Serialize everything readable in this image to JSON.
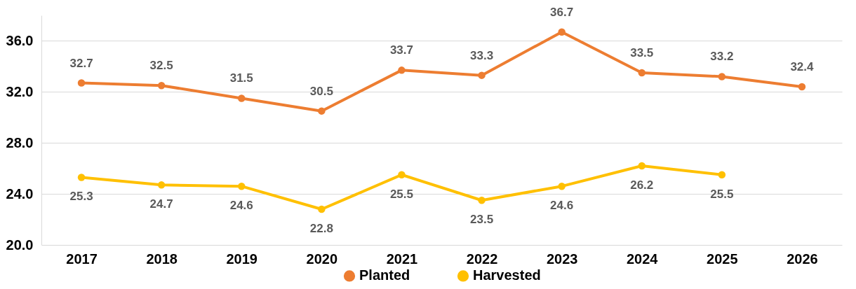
{
  "chart_data": {
    "type": "line",
    "categories": [
      "2017",
      "2018",
      "2019",
      "2020",
      "2021",
      "2022",
      "2023",
      "2024",
      "2025",
      "2026"
    ],
    "series": [
      {
        "name": "Planted",
        "color": "#ed7d31",
        "values": [
          32.7,
          32.5,
          31.5,
          30.5,
          33.7,
          33.3,
          36.7,
          33.5,
          33.2,
          32.4
        ]
      },
      {
        "name": "Harvested",
        "color": "#ffc000",
        "values": [
          25.3,
          24.7,
          24.6,
          22.8,
          25.5,
          23.5,
          24.6,
          26.2,
          25.5,
          null
        ]
      }
    ],
    "ylim": [
      20,
      38
    ],
    "yticks": [
      {
        "value": 20,
        "label": "20.0"
      },
      {
        "value": 24,
        "label": "24.0"
      },
      {
        "value": 28,
        "label": "28.0"
      },
      {
        "value": 32,
        "label": "32.0"
      },
      {
        "value": 36,
        "label": "36.0"
      }
    ],
    "grid": "y",
    "legend": "bottom",
    "marker": "circle",
    "line_style": "solid",
    "data_labels": true
  }
}
